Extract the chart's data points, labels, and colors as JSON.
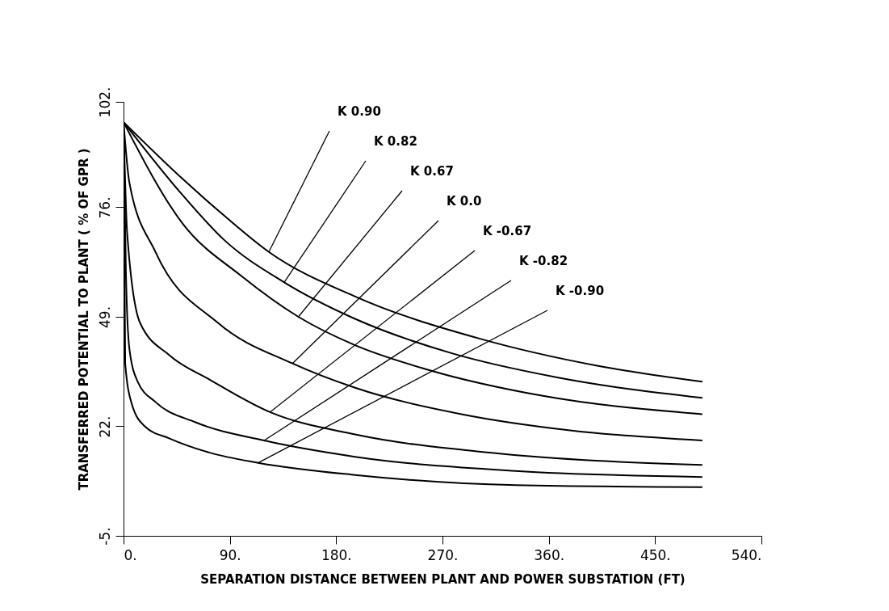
{
  "chart_data": {
    "type": "line",
    "xlabel": "SEPARATION DISTANCE BETWEEN PLANT AND POWER SUBSTATION (FT)",
    "ylabel": "TRANSFERRED POTENTIAL TO PLANT ( % OF GPR )",
    "xlim": [
      0,
      540
    ],
    "ylim": [
      -5,
      102
    ],
    "xticks": [
      {
        "value": 0,
        "label": "0."
      },
      {
        "value": 90,
        "label": "90."
      },
      {
        "value": 180,
        "label": "180."
      },
      {
        "value": 270,
        "label": "270."
      },
      {
        "value": 360,
        "label": "360."
      },
      {
        "value": 450,
        "label": "450."
      },
      {
        "value": 540,
        "label": "540."
      }
    ],
    "yticks": [
      {
        "value": -5,
        "label": "-5."
      },
      {
        "value": 22,
        "label": "22."
      },
      {
        "value": 49,
        "label": "49."
      },
      {
        "value": 76,
        "label": "76."
      },
      {
        "value": 102,
        "label": "102."
      }
    ],
    "series": [
      {
        "color": "#000000",
        "x": [
          0,
          50,
          85,
          123,
          196,
          303,
          400,
          490
        ],
        "values": [
          97,
          83,
          74,
          65,
          54,
          43.5,
          37,
          33
        ]
      },
      {
        "color": "#000000",
        "x": [
          0,
          50,
          85,
          136,
          196,
          278,
          368,
          490
        ],
        "values": [
          97,
          79,
          68,
          57.5,
          48.5,
          40,
          34,
          29
        ]
      },
      {
        "color": "#000000",
        "x": [
          0,
          50,
          100,
          148,
          196,
          257,
          355,
          490
        ],
        "values": [
          97,
          72,
          59,
          49,
          42,
          36,
          29.5,
          25
        ]
      },
      {
        "color": "#000000",
        "x": [
          0,
          5,
          27,
          80,
          143,
          196,
          286,
          378,
          490
        ],
        "values": [
          97,
          82,
          65,
          47.5,
          37.5,
          31.5,
          25,
          21,
          18.5
        ]
      },
      {
        "color": "#000000",
        "x": [
          0,
          3,
          14,
          39,
          73,
          124,
          196,
          310,
          490
        ],
        "values": [
          97,
          70,
          47.5,
          39.5,
          33.5,
          25.5,
          20,
          15.5,
          12.5
        ]
      },
      {
        "color": "#000000",
        "x": [
          0,
          2,
          5,
          12,
          27,
          61,
          119,
          196,
          332,
          490
        ],
        "values": [
          97,
          60,
          41,
          33,
          28,
          23,
          18.5,
          14.5,
          11,
          9.5
        ]
      },
      {
        "color": "#000000",
        "x": [
          0,
          1.4,
          7,
          18,
          39,
          73,
          114,
          196,
          332,
          490
        ],
        "values": [
          97,
          37.5,
          27.5,
          22,
          19,
          15.5,
          13,
          10,
          7.5,
          7
        ]
      }
    ],
    "annotations": [
      {
        "text": "K 0.90",
        "x": 123,
        "y": 65
      },
      {
        "text": "K 0.82",
        "x": 136,
        "y": 57.5
      },
      {
        "text": "K 0.67",
        "x": 148,
        "y": 49
      },
      {
        "text": "K 0.0",
        "x": 143,
        "y": 37.5
      },
      {
        "text": "K -0.67",
        "x": 124,
        "y": 25.5
      },
      {
        "text": "K -0.82",
        "x": 119,
        "y": 18.5
      },
      {
        "text": "K -0.90",
        "x": 114,
        "y": 13
      }
    ]
  }
}
